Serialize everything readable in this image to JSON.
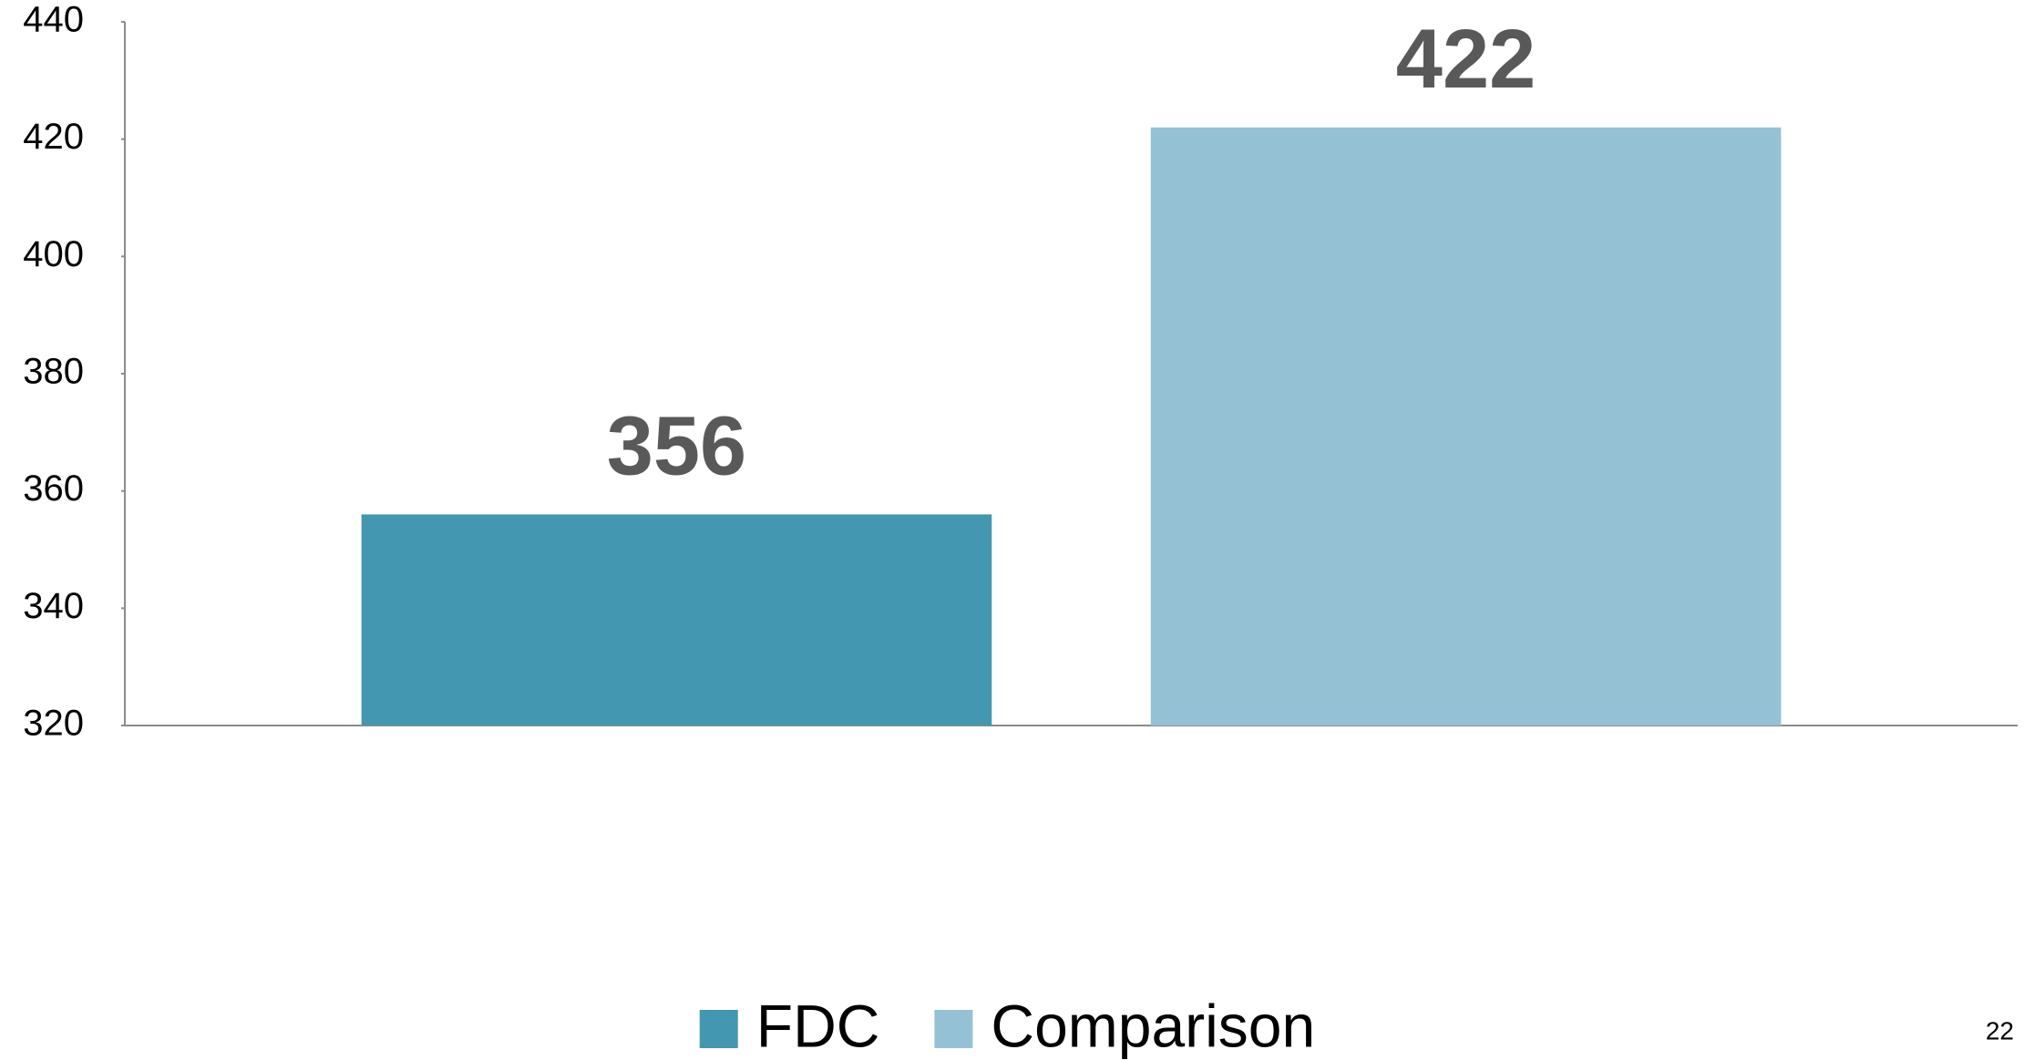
{
  "chart_data": {
    "type": "bar",
    "categories": [
      null
    ],
    "series": [
      {
        "name": "FDC",
        "color": "#4397b0",
        "values": [
          356
        ]
      },
      {
        "name": "Comparison",
        "color": "#94c2d4",
        "values": [
          422
        ]
      }
    ],
    "ylim": [
      320,
      440
    ],
    "yticks": [
      320,
      340,
      360,
      380,
      400,
      420,
      440
    ],
    "grid": false,
    "legend": "bottom"
  },
  "slide_number": "22"
}
